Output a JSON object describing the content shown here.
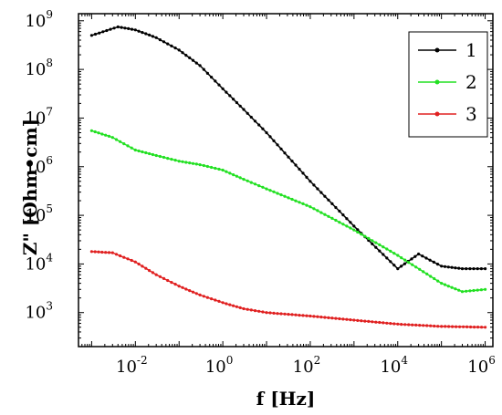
{
  "chart_data": {
    "type": "line",
    "xscale": "log",
    "yscale": "log",
    "xlabel": "f [Hz]",
    "ylabel": "Z\" [Ohm•cm]",
    "xlim": [
      0.0005,
      1500000
    ],
    "ylim": [
      200,
      1400000000
    ],
    "xticks": [
      {
        "value": 0.01,
        "base": "10",
        "exp": "-2"
      },
      {
        "value": 1,
        "base": "10",
        "exp": "0"
      },
      {
        "value": 100,
        "base": "10",
        "exp": "2"
      },
      {
        "value": 10000,
        "base": "10",
        "exp": "4"
      },
      {
        "value": 1000000,
        "base": "10",
        "exp": "6"
      }
    ],
    "yticks": [
      {
        "value": 1000,
        "base": "10",
        "exp": "3"
      },
      {
        "value": 10000,
        "base": "10",
        "exp": "4"
      },
      {
        "value": 100000,
        "base": "10",
        "exp": "5"
      },
      {
        "value": 1000000,
        "base": "10",
        "exp": "6"
      },
      {
        "value": 10000000,
        "base": "10",
        "exp": "7"
      },
      {
        "value": 100000000,
        "base": "10",
        "exp": "8"
      },
      {
        "value": 1000000000,
        "base": "10",
        "exp": "9"
      }
    ],
    "legend_position": "top-right",
    "grid": false,
    "series": [
      {
        "name": "1",
        "color": "#000000",
        "x": [
          0.001,
          0.004,
          0.01,
          0.03,
          0.1,
          0.3,
          1,
          3,
          10,
          100,
          1000,
          10000,
          30000,
          100000,
          300000,
          1000000
        ],
        "y": [
          500000000,
          750000000,
          650000000,
          450000000,
          250000000,
          120000000,
          40000000,
          15000000,
          5000000,
          500000,
          60000,
          8000,
          16000,
          9000,
          8000,
          8000
        ]
      },
      {
        "name": "2",
        "color": "#22e022",
        "x": [
          0.001,
          0.003,
          0.01,
          0.03,
          0.1,
          0.3,
          1,
          3,
          10,
          100,
          1000,
          10000,
          100000,
          300000,
          1000000
        ],
        "y": [
          5500000,
          4000000,
          2200000,
          1700000,
          1300000,
          1100000,
          850000,
          550000,
          350000,
          150000,
          50000,
          15000,
          4000,
          2700,
          3000
        ]
      },
      {
        "name": "3",
        "color": "#e02020",
        "x": [
          0.001,
          0.003,
          0.01,
          0.03,
          0.1,
          0.3,
          1,
          3,
          10,
          100,
          1000,
          10000,
          100000,
          1000000
        ],
        "y": [
          18000,
          17000,
          11000,
          6000,
          3500,
          2300,
          1600,
          1200,
          1000,
          850,
          700,
          580,
          520,
          500
        ]
      }
    ]
  }
}
